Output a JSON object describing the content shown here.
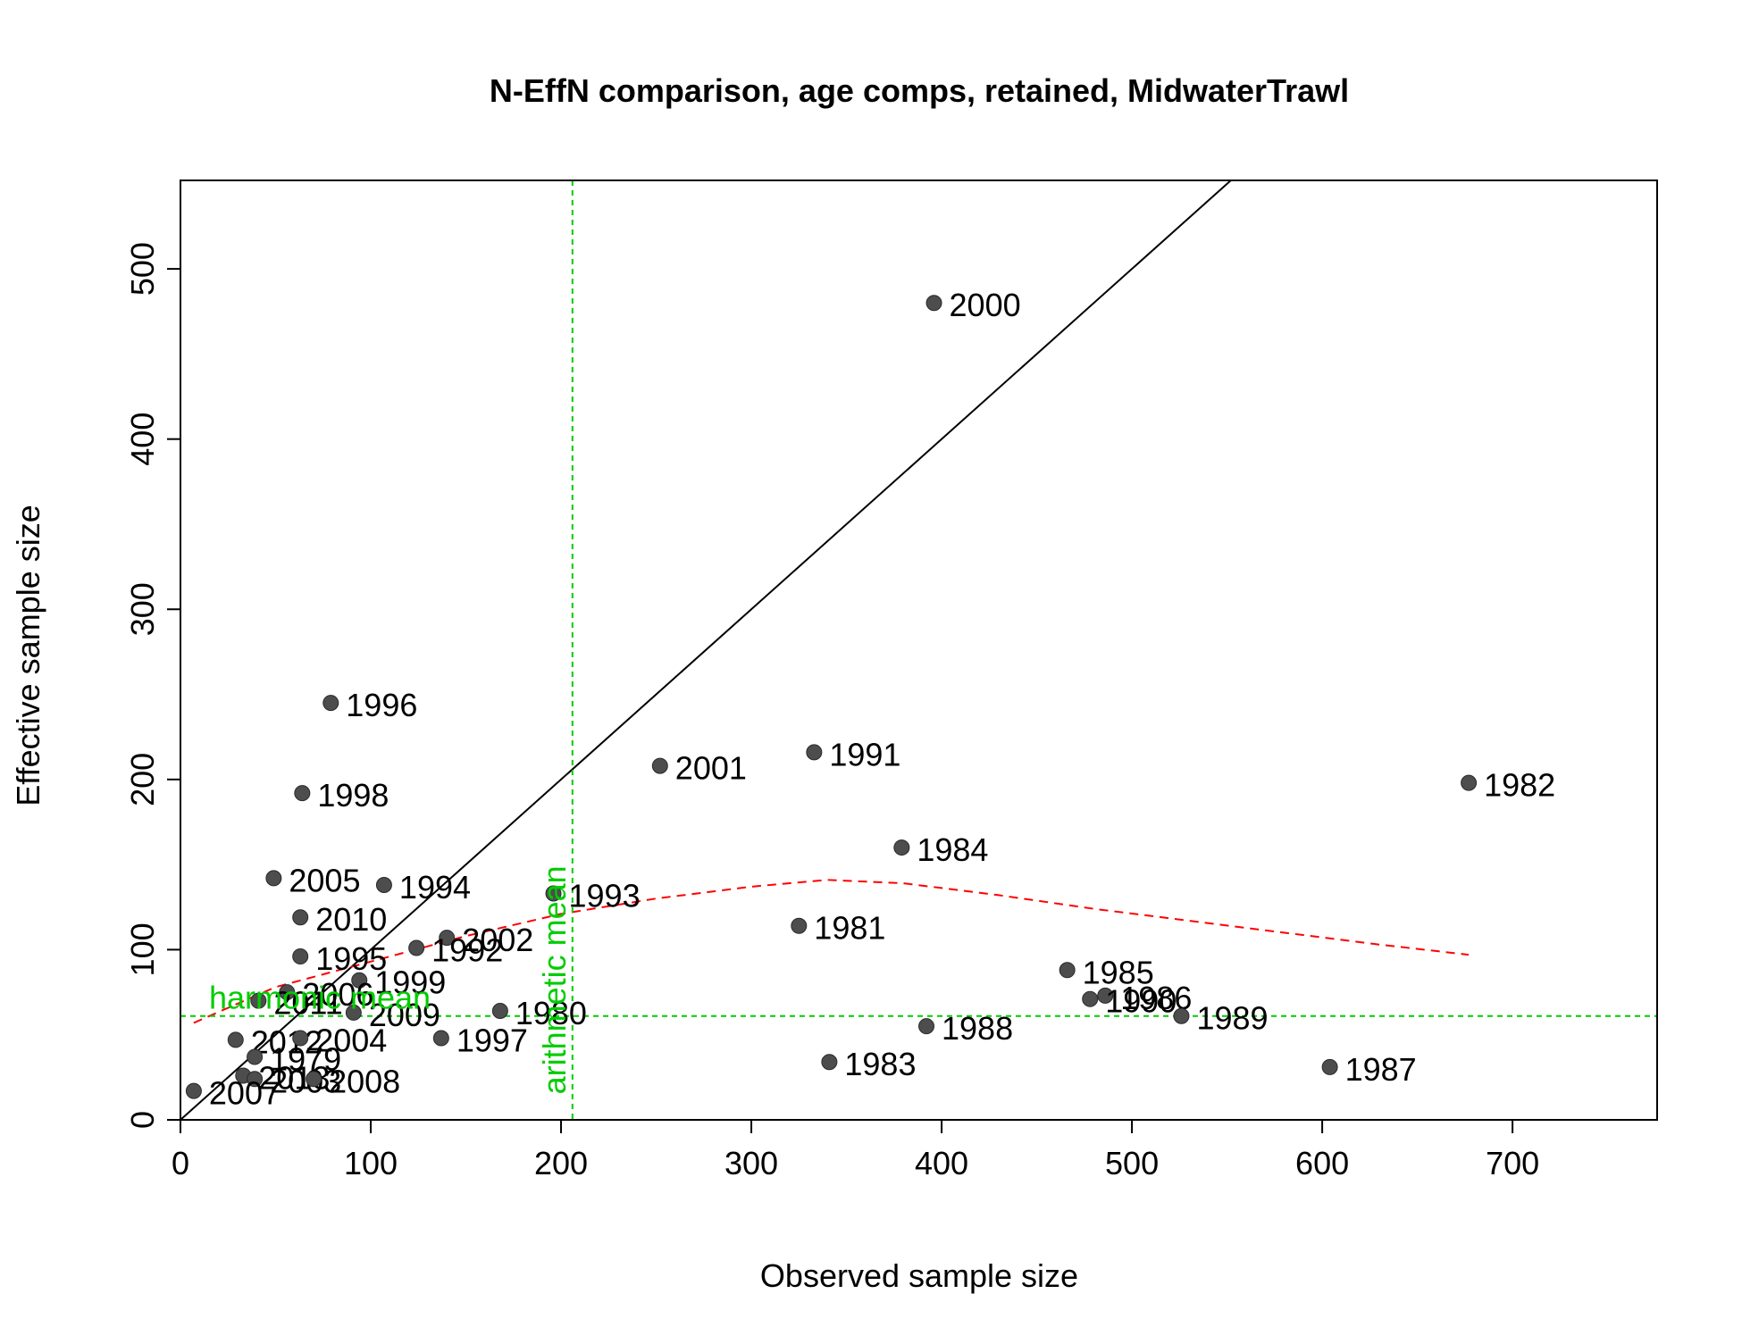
{
  "chart_data": {
    "type": "scatter",
    "title": "N-EffN comparison, age comps, retained, MidwaterTrawl",
    "xlabel": "Observed sample size",
    "ylabel": "Effective sample size",
    "xlim": [
      0,
      776
    ],
    "ylim": [
      0,
      552
    ],
    "x_ticks": [
      0,
      100,
      200,
      300,
      400,
      500,
      600,
      700
    ],
    "y_ticks": [
      0,
      100,
      200,
      300,
      400,
      500
    ],
    "grid": false,
    "point_color": "#4d4d4d",
    "points": [
      {
        "label": "2000",
        "x": 396,
        "y": 480
      },
      {
        "label": "1996",
        "x": 79,
        "y": 245
      },
      {
        "label": "2001",
        "x": 252,
        "y": 208
      },
      {
        "label": "1991",
        "x": 333,
        "y": 216
      },
      {
        "label": "1982",
        "x": 677,
        "y": 198
      },
      {
        "label": "1998",
        "x": 64,
        "y": 192
      },
      {
        "label": "1984",
        "x": 379,
        "y": 160
      },
      {
        "label": "2005",
        "x": 49,
        "y": 142
      },
      {
        "label": "1994",
        "x": 107,
        "y": 138
      },
      {
        "label": "1993",
        "x": 196,
        "y": 133
      },
      {
        "label": "2010",
        "x": 63,
        "y": 119
      },
      {
        "label": "1981",
        "x": 325,
        "y": 114
      },
      {
        "label": "2002",
        "x": 140,
        "y": 107
      },
      {
        "label": "1992",
        "x": 124,
        "y": 101
      },
      {
        "label": "1995",
        "x": 63,
        "y": 96
      },
      {
        "label": "1985",
        "x": 466,
        "y": 88
      },
      {
        "label": "1999",
        "x": 94,
        "y": 82
      },
      {
        "label": "2006",
        "x": 56,
        "y": 75
      },
      {
        "label": "1986",
        "x": 486,
        "y": 73
      },
      {
        "label": "1990",
        "x": 478,
        "y": 71
      },
      {
        "label": "2011",
        "x": 41,
        "y": 70
      },
      {
        "label": "2009",
        "x": 91,
        "y": 63
      },
      {
        "label": "1980",
        "x": 168,
        "y": 64
      },
      {
        "label": "1989",
        "x": 526,
        "y": 61
      },
      {
        "label": "1988",
        "x": 392,
        "y": 55
      },
      {
        "label": "2012",
        "x": 29,
        "y": 47
      },
      {
        "label": "2004",
        "x": 63,
        "y": 48
      },
      {
        "label": "1997",
        "x": 137,
        "y": 48
      },
      {
        "label": "1979",
        "x": 39,
        "y": 37
      },
      {
        "label": "1983",
        "x": 341,
        "y": 34
      },
      {
        "label": "1987",
        "x": 604,
        "y": 31
      },
      {
        "label": "2013",
        "x": 33,
        "y": 26
      },
      {
        "label": "2003",
        "x": 39,
        "y": 24
      },
      {
        "label": "2008",
        "x": 70,
        "y": 24
      },
      {
        "label": "2007",
        "x": 7,
        "y": 17
      }
    ],
    "reference_lines": {
      "one_to_one": {
        "color": "#000000"
      },
      "harmonic_mean": {
        "label": "harmonic mean",
        "value": 61,
        "color": "#00cc00"
      },
      "arithmetic_mean": {
        "label": "arithmetic mean",
        "value": 206,
        "color": "#00cc00"
      }
    },
    "smoother": {
      "color": "#ff0000",
      "x": [
        7,
        50,
        100,
        150,
        200,
        250,
        300,
        340,
        380,
        430,
        480,
        530,
        580,
        630,
        677
      ],
      "y": [
        57,
        78,
        93,
        108,
        121,
        130,
        137,
        141,
        139,
        132,
        124,
        117,
        110,
        103,
        97
      ]
    }
  }
}
